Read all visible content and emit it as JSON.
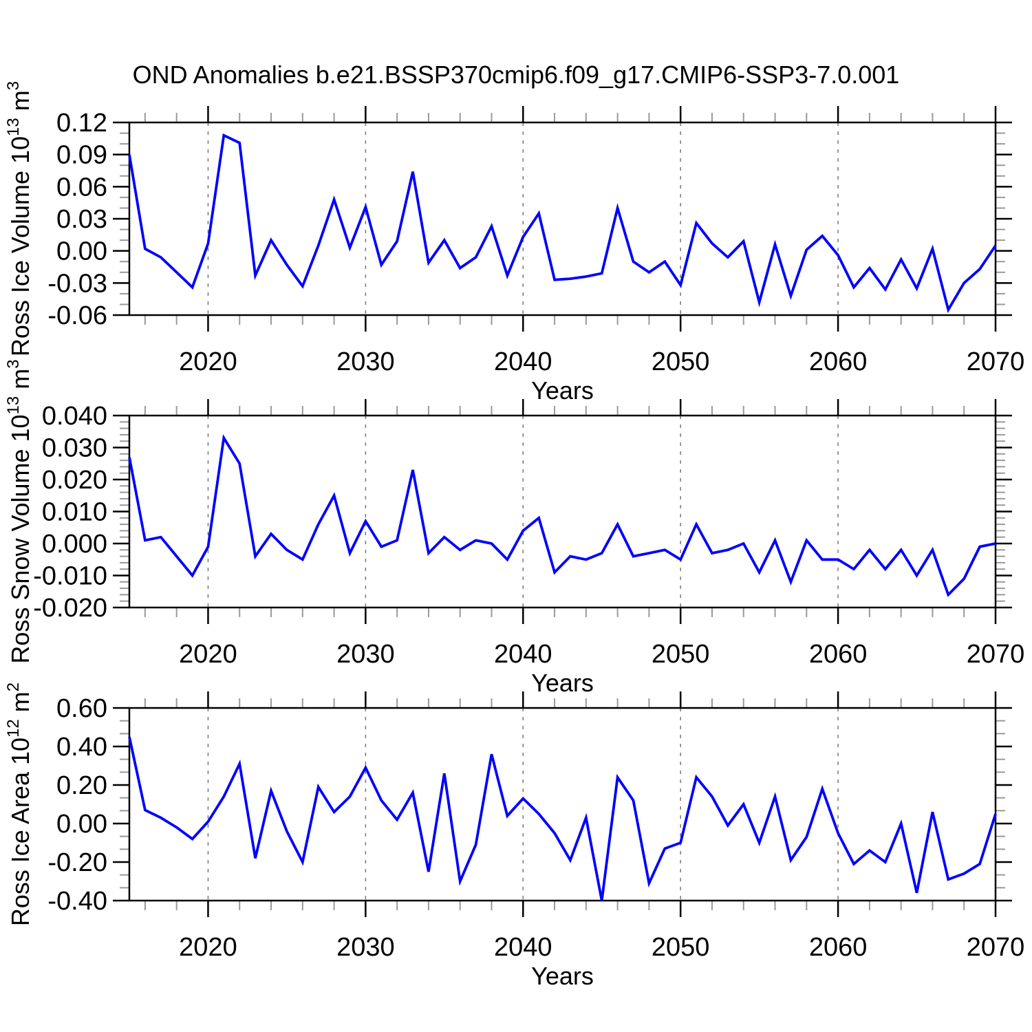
{
  "title": "OND Anomalies b.e21.BSSP370cmip6.f09_g17.CMIP6-SSP3-7.0.001",
  "style": {
    "line_color": "#0000ff",
    "line_width": 3.8,
    "axis_color": "#000000",
    "major_tick_color": "#000000",
    "minor_tick_color": "#999999",
    "grid_color": "#777777",
    "text_color": "#000000",
    "background": "#ffffff"
  },
  "x_axis": {
    "label": "Years",
    "start": 2015,
    "end": 2070,
    "major_ticks": [
      2020,
      2030,
      2040,
      2050,
      2060,
      2070
    ],
    "major_tick_labels": [
      "2020",
      "2030",
      "2040",
      "2050",
      "2060",
      "2070"
    ],
    "minor_step": 2,
    "grid_decades": [
      2020,
      2030,
      2040,
      2050,
      2060
    ]
  },
  "years": [
    2015,
    2016,
    2017,
    2018,
    2019,
    2020,
    2021,
    2022,
    2023,
    2024,
    2025,
    2026,
    2027,
    2028,
    2029,
    2030,
    2031,
    2032,
    2033,
    2034,
    2035,
    2036,
    2037,
    2038,
    2039,
    2040,
    2041,
    2042,
    2043,
    2044,
    2045,
    2046,
    2047,
    2048,
    2049,
    2050,
    2051,
    2052,
    2053,
    2054,
    2055,
    2056,
    2057,
    2058,
    2059,
    2060,
    2061,
    2062,
    2063,
    2064,
    2065,
    2066,
    2067,
    2068,
    2069,
    2070
  ],
  "chart_data": [
    {
      "type": "line",
      "name": "ross-ice-volume",
      "title": "",
      "xlabel": "Years",
      "ylabel_plain": "Ross Ice Volume 10^13 m^3",
      "ylabel_parts": {
        "base": "Ross Ice Volume 10",
        "sup1": "13",
        "mid": " m",
        "sup2": "3"
      },
      "ylim": [
        -0.06,
        0.12
      ],
      "ytick_values": [
        0.12,
        0.09,
        0.06,
        0.03,
        0.0,
        -0.03,
        -0.06
      ],
      "ytick_labels": [
        "0.12",
        "0.09",
        "0.06",
        "0.03",
        "0.00",
        "-0.03",
        "-0.06"
      ],
      "minors_between": 2,
      "grid": "dashed-vertical-decades",
      "legend": "none",
      "values": [
        0.09,
        0.002,
        -0.006,
        -0.02,
        -0.034,
        0.007,
        0.108,
        0.101,
        -0.023,
        0.01,
        -0.013,
        -0.033,
        0.005,
        0.048,
        0.003,
        0.041,
        -0.013,
        0.009,
        0.074,
        -0.011,
        0.01,
        -0.016,
        -0.006,
        0.023,
        -0.023,
        0.013,
        0.035,
        -0.027,
        -0.026,
        -0.024,
        -0.021,
        0.04,
        -0.01,
        -0.02,
        -0.01,
        -0.032,
        0.026,
        0.007,
        -0.006,
        0.009,
        -0.048,
        0.006,
        -0.042,
        0.001,
        0.014,
        -0.004,
        -0.034,
        -0.016,
        -0.036,
        -0.008,
        -0.035,
        0.002,
        -0.055,
        -0.03,
        -0.017,
        0.005
      ]
    },
    {
      "type": "line",
      "name": "ross-snow-volume",
      "title": "",
      "xlabel": "Years",
      "ylabel_plain": "Ross Snow Volume 10^13 m^3",
      "ylabel_parts": {
        "base": "Ross Snow Volume 10",
        "sup1": "13",
        "mid": " m",
        "sup2": "3"
      },
      "ylim": [
        -0.02,
        0.04
      ],
      "ytick_values": [
        0.04,
        0.03,
        0.02,
        0.01,
        0.0,
        -0.01,
        -0.02
      ],
      "ytick_labels": [
        "0.040",
        "0.030",
        "0.020",
        "0.010",
        "0.000",
        "-0.010",
        "-0.020"
      ],
      "minors_between": 4,
      "grid": "dashed-vertical-decades",
      "legend": "none",
      "values": [
        0.027,
        0.001,
        0.002,
        -0.004,
        -0.01,
        -0.001,
        0.033,
        0.025,
        -0.004,
        0.003,
        -0.002,
        -0.005,
        0.006,
        0.015,
        -0.003,
        0.007,
        -0.001,
        0.001,
        0.023,
        -0.003,
        0.002,
        -0.002,
        0.001,
        0.0,
        -0.005,
        0.004,
        0.008,
        -0.009,
        -0.004,
        -0.005,
        -0.003,
        0.006,
        -0.004,
        -0.003,
        -0.002,
        -0.005,
        0.006,
        -0.003,
        -0.002,
        0.0,
        -0.009,
        0.001,
        -0.012,
        0.001,
        -0.005,
        -0.005,
        -0.008,
        -0.002,
        -0.008,
        -0.002,
        -0.01,
        -0.002,
        -0.016,
        -0.011,
        -0.001,
        0.0
      ]
    },
    {
      "type": "line",
      "name": "ross-ice-area",
      "title": "",
      "xlabel": "Years",
      "ylabel_plain": "Ross Ice Area 10^12 m^2",
      "ylabel_parts": {
        "base": "Ross Ice Area 10",
        "sup1": "12",
        "mid": " m",
        "sup2": "2"
      },
      "ylim": [
        -0.4,
        0.6
      ],
      "ytick_values": [
        0.6,
        0.4,
        0.2,
        0.0,
        -0.2,
        -0.4
      ],
      "ytick_labels": [
        "0.60",
        "0.40",
        "0.20",
        "0.00",
        "-0.20",
        "-0.40"
      ],
      "minors_between": 2,
      "grid": "dashed-vertical-decades",
      "legend": "none",
      "values": [
        0.45,
        0.07,
        0.03,
        -0.02,
        -0.08,
        0.01,
        0.14,
        0.31,
        -0.18,
        0.17,
        -0.04,
        -0.2,
        0.19,
        0.06,
        0.14,
        0.29,
        0.12,
        0.02,
        0.16,
        -0.25,
        0.26,
        -0.3,
        -0.11,
        0.36,
        0.04,
        0.13,
        0.05,
        -0.05,
        -0.19,
        0.03,
        -0.4,
        0.24,
        0.12,
        -0.31,
        -0.13,
        -0.1,
        0.24,
        0.14,
        -0.01,
        0.1,
        -0.1,
        0.14,
        -0.19,
        -0.07,
        0.18,
        -0.05,
        -0.21,
        -0.14,
        -0.2,
        0.0,
        -0.36,
        0.06,
        -0.29,
        -0.26,
        -0.21,
        0.05
      ]
    }
  ]
}
